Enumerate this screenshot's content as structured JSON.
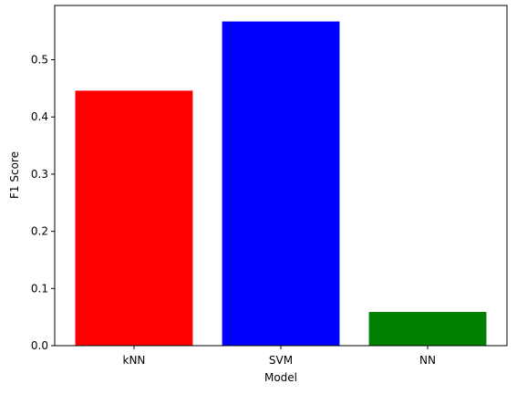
{
  "chart_data": {
    "type": "bar",
    "categories": [
      "kNN",
      "SVM",
      "NN"
    ],
    "values": [
      0.446,
      0.567,
      0.059
    ],
    "colors": [
      "#ff0000",
      "#0000ff",
      "#008000"
    ],
    "title": "",
    "xlabel": "Model",
    "ylabel": "F1 Score",
    "ylim": [
      0,
      0.595
    ],
    "yticks": [
      0.0,
      0.1,
      0.2,
      0.3,
      0.4,
      0.5
    ],
    "ytick_labels": [
      "0.0",
      "0.1",
      "0.2",
      "0.3",
      "0.4",
      "0.5"
    ],
    "grid": false,
    "legend": "none"
  }
}
